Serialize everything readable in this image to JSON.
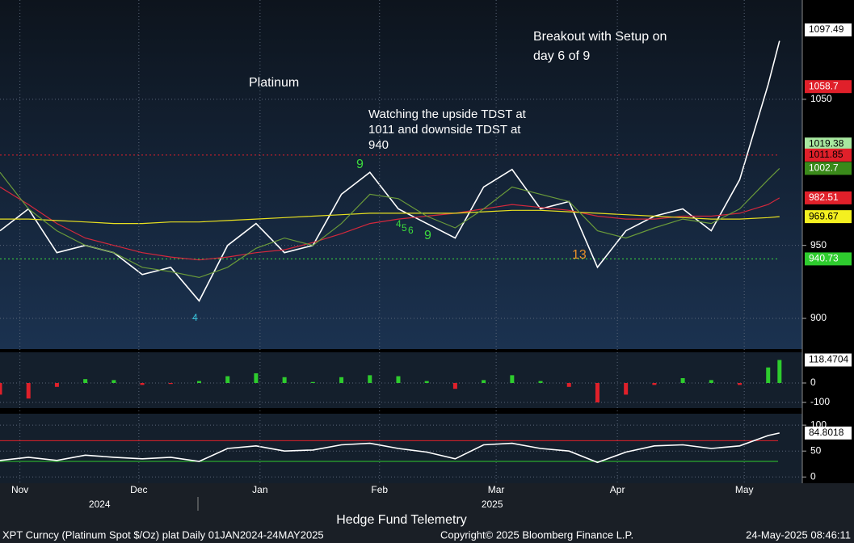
{
  "chart_data": [
    {
      "type": "line",
      "title": "Platinum",
      "annotations": [
        [
          "Breakout with Setup on",
          "day 6 of 9"
        ],
        [
          "Watching the upside TDST at",
          "1011 and downside TDST at",
          "940"
        ]
      ],
      "td_counts": [
        {
          "text": "9",
          "color": "#3ddc3d"
        },
        {
          "text": "9",
          "color": "#3ddc3d"
        },
        {
          "text": "13",
          "color": "#e8902a"
        },
        {
          "text": "4",
          "color": "#3ddc3d"
        },
        {
          "text": "5",
          "color": "#3ddc3d"
        },
        {
          "text": "6",
          "color": "#3ddc3d"
        },
        {
          "text": "4",
          "color": "#3ac8e0"
        }
      ],
      "x": [
        0,
        5,
        10,
        15,
        20,
        25,
        30,
        35,
        40,
        45,
        50,
        55,
        60,
        65,
        70,
        75,
        80,
        85,
        90,
        95,
        100,
        105,
        110,
        115,
        120,
        125,
        130,
        135,
        137
      ],
      "series": [
        {
          "color": "#ffffff",
          "values": [
            960,
            975,
            945,
            950,
            945,
            930,
            935,
            912,
            950,
            965,
            945,
            950,
            985,
            1000,
            975,
            965,
            955,
            990,
            1002,
            975,
            980,
            935,
            960,
            970,
            975,
            960,
            995,
            1060,
            1090
          ]
        },
        {
          "color": "#d4283c",
          "values": [
            990,
            978,
            965,
            955,
            950,
            945,
            942,
            940,
            942,
            945,
            947,
            952,
            958,
            965,
            968,
            970,
            972,
            975,
            978,
            976,
            974,
            970,
            968,
            968,
            970,
            970,
            972,
            978,
            982.51
          ]
        },
        {
          "color": "#e8e020",
          "values": [
            968,
            968,
            967,
            966,
            965,
            965,
            966,
            966,
            967,
            968,
            969,
            970,
            971,
            972,
            972,
            972,
            972,
            973,
            974,
            974,
            973,
            972,
            971,
            970,
            969,
            968,
            968,
            969,
            969.67
          ]
        },
        {
          "color": "#6a9a3a",
          "values": [
            1000,
            975,
            960,
            950,
            945,
            935,
            932,
            928,
            935,
            948,
            955,
            950,
            965,
            985,
            982,
            970,
            962,
            975,
            990,
            985,
            980,
            960,
            955,
            962,
            968,
            965,
            975,
            995,
            1002.7
          ]
        }
      ],
      "levels": [
        {
          "value": 1011.85,
          "color": "#e0202a"
        },
        {
          "value": 940.73,
          "color": "#3ddc3d"
        }
      ],
      "price_labels": [
        {
          "value": 1097.49,
          "color": "#ffffff",
          "text_color": "#000000"
        },
        {
          "value": 1058.7,
          "color": "#e0202a",
          "text_color": "#ffffff"
        },
        {
          "value": 1019.38,
          "color": "#a8e8a0",
          "text_color": "#000000"
        },
        {
          "value": 1011.85,
          "color": "#e0202a",
          "text_color": "#000000"
        },
        {
          "value": 1002.7,
          "color": "#3a8a1a",
          "text_color": "#ffffff"
        },
        {
          "value": 982.51,
          "color": "#e0202a",
          "text_color": "#ffffff"
        },
        {
          "value": 969.67,
          "color": "#f4f020",
          "text_color": "#000000"
        },
        {
          "value": 940.73,
          "color": "#2ecc2e",
          "text_color": "#ffffff"
        }
      ],
      "xlim": [
        0,
        141
      ],
      "ylim": [
        879,
        1118
      ],
      "yticks": [
        900,
        950,
        1050
      ],
      "grid": true
    },
    {
      "type": "bar",
      "x": [
        0,
        5,
        10,
        15,
        20,
        25,
        30,
        35,
        40,
        45,
        50,
        55,
        60,
        65,
        70,
        75,
        80,
        85,
        90,
        95,
        100,
        105,
        110,
        115,
        120,
        125,
        130,
        135,
        137
      ],
      "values": [
        -60,
        -80,
        -20,
        20,
        15,
        -10,
        -5,
        10,
        35,
        50,
        30,
        5,
        30,
        40,
        35,
        10,
        -30,
        15,
        40,
        10,
        -20,
        -100,
        -60,
        -10,
        25,
        15,
        -10,
        80,
        118.4704
      ],
      "up_color": "#2ecc2e",
      "down_color": "#e0202a",
      "current_label": {
        "value": 118.4704,
        "color": "#ffffff",
        "text_color": "#000000"
      },
      "xlim": [
        0,
        141
      ],
      "ylim": [
        -129,
        158
      ],
      "yticks": [
        -100,
        0
      ],
      "grid": true
    },
    {
      "type": "line",
      "x": [
        0,
        5,
        10,
        15,
        20,
        25,
        30,
        35,
        40,
        45,
        50,
        55,
        60,
        65,
        70,
        75,
        80,
        85,
        90,
        95,
        100,
        105,
        110,
        115,
        120,
        125,
        130,
        135,
        137
      ],
      "series": [
        {
          "color": "#ffffff",
          "values": [
            32,
            38,
            32,
            42,
            38,
            35,
            38,
            30,
            55,
            60,
            50,
            52,
            62,
            65,
            55,
            48,
            35,
            62,
            65,
            55,
            50,
            28,
            48,
            60,
            62,
            55,
            60,
            80,
            84.8018
          ]
        }
      ],
      "levels": [
        {
          "value": 70,
          "color": "#e0202a"
        },
        {
          "value": 30,
          "color": "#2ecc2e"
        }
      ],
      "current_label": {
        "value": 84.8018,
        "color": "#ffffff",
        "text_color": "#000000"
      },
      "xlim": [
        0,
        141
      ],
      "ylim": [
        -12,
        122
      ],
      "yticks": [
        0,
        50,
        100
      ],
      "grid": true,
      "xticks": [
        {
          "value": 3.5,
          "label": "Nov"
        },
        {
          "value": 24.4,
          "label": "Dec"
        },
        {
          "value": 45.7,
          "label": "Jan"
        },
        {
          "value": 66.7,
          "label": "Feb"
        },
        {
          "value": 87.2,
          "label": "Mar"
        },
        {
          "value": 108.5,
          "label": "Apr"
        },
        {
          "value": 130.8,
          "label": "May"
        }
      ],
      "year_labels": [
        {
          "value": 17.5,
          "label": "2024"
        },
        {
          "value": 86.5,
          "label": "2025"
        }
      ]
    }
  ],
  "footer": {
    "center": "Hedge Fund Telemetry",
    "source": "XPT Curncy (Platinum Spot  $/Oz) plat  Daily 01JAN2024-24MAY2025",
    "copyright": "Copyright© 2025 Bloomberg Finance L.P.",
    "timestamp": "24-May-2025 08:46:11"
  }
}
